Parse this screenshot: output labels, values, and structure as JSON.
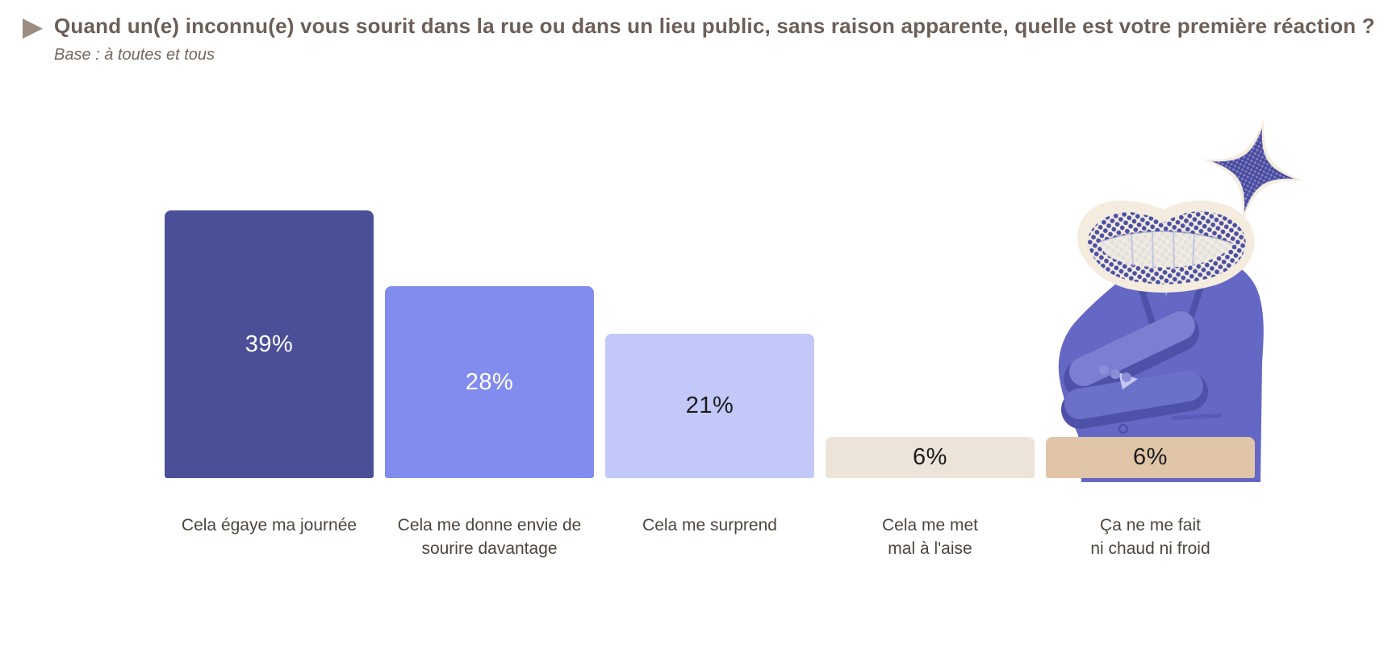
{
  "header": {
    "bullet_icon": "triangle-right-icon",
    "title": "Quand un(e) inconnu(e) vous sourit dans la rue ou dans un lieu public, sans raison apparente, quelle est votre première réaction ?",
    "subtitle": "Base : à toutes et tous",
    "title_color": "#6c5f57",
    "bullet_color": "#9b8d80"
  },
  "chart_data": {
    "type": "bar",
    "title": "",
    "xlabel": "",
    "ylabel": "",
    "unit": "%",
    "ylim": [
      0,
      40
    ],
    "grid": false,
    "legend": false,
    "categories": [
      "Cela égaye ma journée",
      "Cela me donne envie de sourire davantage",
      "Cela me surprend",
      "Cela me met mal à l'aise",
      "Ça ne me fait ni chaud ni froid"
    ],
    "category_lines": [
      [
        "Cela égaye ma journée"
      ],
      [
        "Cela me donne envie de",
        "sourire davantage"
      ],
      [
        "Cela me surprend"
      ],
      [
        "Cela me met",
        "mal à l'aise"
      ],
      [
        "Ça ne me fait",
        "ni chaud ni froid"
      ]
    ],
    "values": [
      39,
      28,
      21,
      6,
      6
    ],
    "value_labels": [
      "39%",
      "28%",
      "21%",
      "6%",
      "6%"
    ],
    "bar_colors": [
      "#4a4f97",
      "#828cee",
      "#c2c8f8",
      "#ece4d8",
      "#e0c5a8"
    ],
    "value_label_colors": [
      "#ffffff",
      "#ffffff",
      "#1c1c1c",
      "#1c1c1c",
      "#1c1c1c"
    ],
    "category_label_color": "#4e463e"
  },
  "illustration": {
    "name": "smiling-mouth-person-collage",
    "elements": [
      "halftone-smile-mouth",
      "sparkle-star",
      "person-with-crossed-arms"
    ],
    "colors": {
      "ink_blue": "#4b50a4",
      "suit_blue": "#6468c4",
      "cream": "#f4ecdf"
    }
  }
}
